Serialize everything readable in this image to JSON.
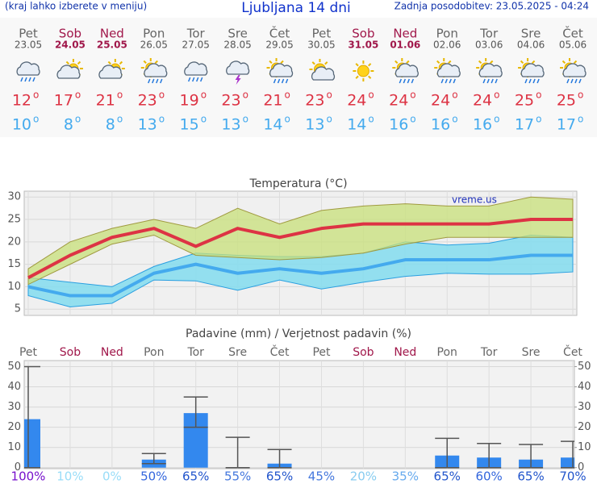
{
  "header": {
    "hint": "(kraj lahko izberete v meniju)",
    "title": "Ljubljana 14 dni",
    "updated": "Zadnja posodobitev: 23.05.2025 - 04:24"
  },
  "degree_sign": "o",
  "forecast": {
    "days": [
      {
        "name": "Pet",
        "date": "23.05",
        "color": "#666666",
        "icon": "rain"
      },
      {
        "name": "Sob",
        "date": "24.05",
        "color": "#a0174a",
        "icon": "partly-cloudy"
      },
      {
        "name": "Ned",
        "date": "25.05",
        "color": "#a0174a",
        "icon": "partly-cloudy"
      },
      {
        "name": "Pon",
        "date": "26.05",
        "color": "#666666",
        "icon": "sun-shower"
      },
      {
        "name": "Tor",
        "date": "27.05",
        "color": "#666666",
        "icon": "rain"
      },
      {
        "name": "Sre",
        "date": "28.05",
        "color": "#666666",
        "icon": "thunder"
      },
      {
        "name": "Čet",
        "date": "29.05",
        "color": "#666666",
        "icon": "sun-shower"
      },
      {
        "name": "Pet",
        "date": "30.05",
        "color": "#666666",
        "icon": "partly-sunny"
      },
      {
        "name": "Sob",
        "date": "31.05",
        "color": "#a0174a",
        "icon": "sun"
      },
      {
        "name": "Ned",
        "date": "01.06",
        "color": "#a0174a",
        "icon": "sun-shower"
      },
      {
        "name": "Pon",
        "date": "02.06",
        "color": "#666666",
        "icon": "sun-shower"
      },
      {
        "name": "Tor",
        "date": "03.06",
        "color": "#666666",
        "icon": "sun-shower"
      },
      {
        "name": "Sre",
        "date": "04.06",
        "color": "#666666",
        "icon": "sun-shower"
      },
      {
        "name": "Čet",
        "date": "05.06",
        "color": "#666666",
        "icon": "sun-shower"
      }
    ]
  },
  "chart_data": [
    {
      "type": "line",
      "title": "Temperatura (°C)",
      "watermark": "vreme.us",
      "ylim": [
        3.6,
        31.3
      ],
      "yticks": [
        5,
        10,
        15,
        20,
        25,
        30
      ],
      "grid": true,
      "bands": [
        {
          "color": "#88ddee",
          "edge": "#2a9fe0",
          "upper": [
            12,
            11,
            10,
            14.5,
            17.5,
            17,
            16.7,
            16.7,
            17.5,
            20,
            19.3,
            19.7,
            21.5,
            21
          ],
          "lower": [
            8,
            5.5,
            6.3,
            11.5,
            11.3,
            9.2,
            11.5,
            9.5,
            11,
            12.3,
            13,
            12.8,
            12.8,
            13.3
          ]
        },
        {
          "color": "#c8e07a",
          "edge": "#a09a40",
          "upper": [
            14,
            20,
            23,
            25,
            23,
            27.5,
            24,
            27,
            28,
            28.5,
            28,
            28,
            30,
            29.5
          ],
          "lower": [
            10.5,
            15,
            19.5,
            21.5,
            17,
            16.5,
            16,
            16.5,
            17.5,
            19.5,
            21,
            21,
            21,
            21
          ]
        }
      ],
      "series": [
        {
          "color": "#dd3344",
          "values": [
            12,
            17,
            21,
            23,
            19,
            23,
            21,
            23,
            24,
            24,
            24,
            24,
            25,
            25
          ]
        },
        {
          "color": "#44aaee",
          "values": [
            10,
            8,
            8,
            13,
            15,
            13,
            14,
            13,
            14,
            16,
            16,
            16,
            17,
            17
          ]
        }
      ]
    },
    {
      "type": "bar",
      "title": "Padavine (mm) / Verjetnost padavin (%)",
      "ylim": [
        -0.5,
        53
      ],
      "yticks": [
        0,
        10,
        20,
        30,
        40,
        50
      ],
      "y2lim": [
        -0.5,
        53
      ],
      "y2ticks": [
        0,
        10,
        20,
        30,
        40,
        50
      ],
      "grid": true,
      "color": "#3388ee",
      "values": [
        24,
        0,
        0,
        4,
        27,
        0,
        2,
        0,
        0,
        0,
        6,
        5,
        4,
        5
      ],
      "error_low": [
        0,
        null,
        null,
        2,
        20,
        0,
        0,
        null,
        null,
        null,
        0,
        0,
        0,
        0
      ],
      "error_high": [
        50,
        null,
        null,
        7,
        35,
        15,
        9,
        null,
        null,
        null,
        14.5,
        12,
        11.5,
        13
      ],
      "probability": [
        100,
        10,
        0,
        50,
        65,
        55,
        65,
        45,
        20,
        35,
        65,
        60,
        65,
        70
      ],
      "probability_labels": [
        "100%",
        "10%",
        "0%",
        "50%",
        "65%",
        "55%",
        "65%",
        "45%",
        "20%",
        "35%",
        "65%",
        "60%",
        "65%",
        "70%"
      ],
      "probability_colors": [
        "#7711cc",
        "#99ddf8",
        "#99ddf8",
        "#3366dd",
        "#2255cc",
        "#4477dd",
        "#2255cc",
        "#4477dd",
        "#88ccf0",
        "#66aaee",
        "#2255cc",
        "#3366dd",
        "#2255cc",
        "#2255cc"
      ]
    }
  ]
}
